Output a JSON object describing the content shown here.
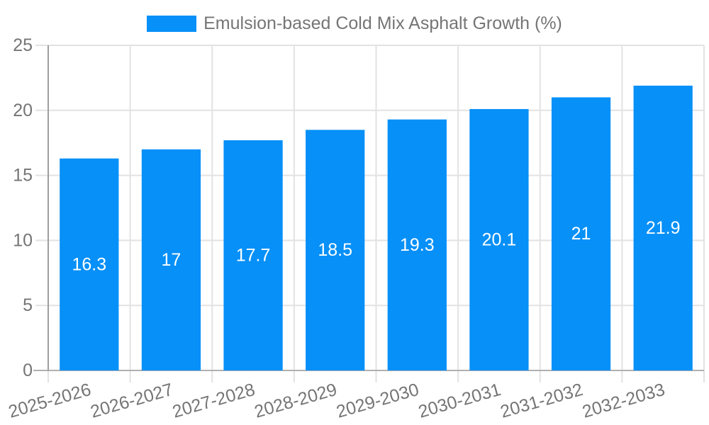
{
  "legend": {
    "label": "Emulsion-based Cold Mix Asphalt Growth (%)"
  },
  "chart_data": {
    "type": "bar",
    "title": "Emulsion-based Cold Mix Asphalt Growth (%)",
    "categories": [
      "2025-2026",
      "2026-2027",
      "2027-2028",
      "2028-2029",
      "2029-2030",
      "2030-2031",
      "2031-2032",
      "2032-2033"
    ],
    "values": [
      16.3,
      17,
      17.7,
      18.5,
      19.3,
      20.1,
      21,
      21.9
    ],
    "value_labels": [
      "16.3",
      "17",
      "17.7",
      "18.5",
      "19.3",
      "20.1",
      "21",
      "21.9"
    ],
    "xlabel": "",
    "ylabel": "",
    "ylim": [
      0,
      25
    ],
    "yticks": [
      0,
      5,
      10,
      15,
      20,
      25
    ],
    "ytick_labels": [
      "0",
      "5",
      "10",
      "15",
      "20",
      "25"
    ],
    "grid": true,
    "legend_position": "top-center",
    "x_label_rotation_deg": -16,
    "bar_color": "#0690F8",
    "bar_label_color": "#ffffff",
    "axis_text_color": "#757575",
    "gridline_color": "#e2e2e2",
    "y_axis_line_color": "#9e9e9e",
    "x_axis_line_color": "#b0b0b0"
  }
}
